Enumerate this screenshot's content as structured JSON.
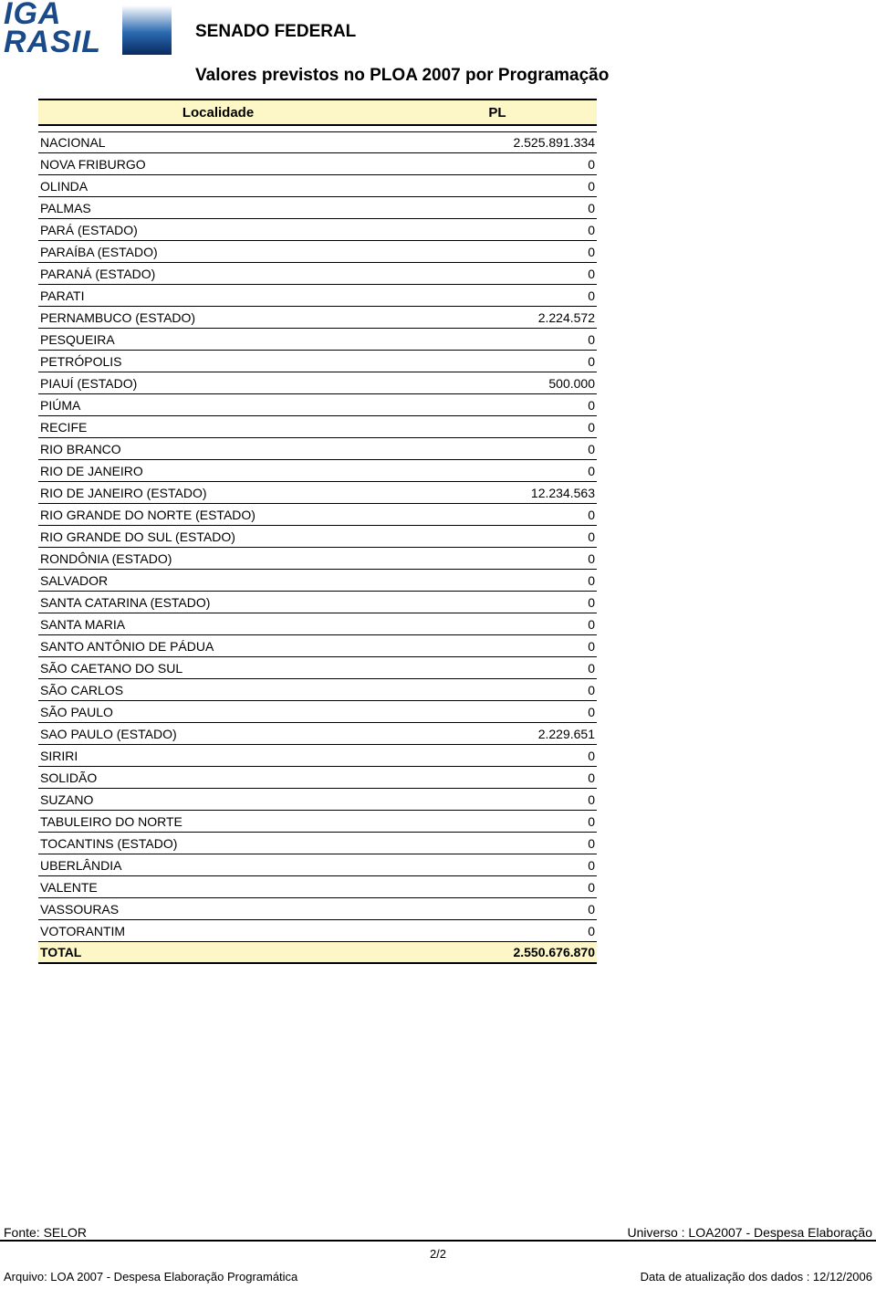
{
  "logo": {
    "top_text": "IGA",
    "bottom_text": "RASIL",
    "text_color": "#1a4a8a",
    "grad_top": "#ffffff",
    "grad_mid": "#2a6ab0",
    "grad_bottom": "#0a2a60"
  },
  "header": {
    "org": "SENADO FEDERAL",
    "title": "Valores previstos no PLOA 2007 por Programação"
  },
  "columns": {
    "loc": "Localidade",
    "pl": "PL"
  },
  "header_bg": "#fdf7c7",
  "total_bg": "#fdf7c7",
  "rows": [
    {
      "loc": "NACIONAL",
      "pl": "2.525.891.334"
    },
    {
      "loc": "NOVA FRIBURGO",
      "pl": "0"
    },
    {
      "loc": "OLINDA",
      "pl": "0"
    },
    {
      "loc": "PALMAS",
      "pl": "0"
    },
    {
      "loc": "PARÁ (ESTADO)",
      "pl": "0"
    },
    {
      "loc": "PARAÍBA (ESTADO)",
      "pl": "0"
    },
    {
      "loc": "PARANÁ (ESTADO)",
      "pl": "0"
    },
    {
      "loc": "PARATI",
      "pl": "0"
    },
    {
      "loc": "PERNAMBUCO (ESTADO)",
      "pl": "2.224.572"
    },
    {
      "loc": "PESQUEIRA",
      "pl": "0"
    },
    {
      "loc": "PETRÓPOLIS",
      "pl": "0"
    },
    {
      "loc": "PIAUÍ (ESTADO)",
      "pl": "500.000"
    },
    {
      "loc": "PIÚMA",
      "pl": "0"
    },
    {
      "loc": "RECIFE",
      "pl": "0"
    },
    {
      "loc": "RIO BRANCO",
      "pl": "0"
    },
    {
      "loc": "RIO DE JANEIRO",
      "pl": "0"
    },
    {
      "loc": "RIO DE JANEIRO (ESTADO)",
      "pl": "12.234.563"
    },
    {
      "loc": "RIO GRANDE DO NORTE (ESTADO)",
      "pl": "0"
    },
    {
      "loc": "RIO GRANDE DO SUL (ESTADO)",
      "pl": "0"
    },
    {
      "loc": "RONDÔNIA (ESTADO)",
      "pl": "0"
    },
    {
      "loc": "SALVADOR",
      "pl": "0"
    },
    {
      "loc": "SANTA CATARINA (ESTADO)",
      "pl": "0"
    },
    {
      "loc": "SANTA MARIA",
      "pl": "0"
    },
    {
      "loc": "SANTO ANTÔNIO DE PÁDUA",
      "pl": "0"
    },
    {
      "loc": "SÃO CAETANO DO SUL",
      "pl": "0"
    },
    {
      "loc": "SÃO CARLOS",
      "pl": "0"
    },
    {
      "loc": "SÃO PAULO",
      "pl": "0"
    },
    {
      "loc": "SAO PAULO (ESTADO)",
      "pl": "2.229.651"
    },
    {
      "loc": "SIRIRI",
      "pl": "0"
    },
    {
      "loc": "SOLIDÃO",
      "pl": "0"
    },
    {
      "loc": "SUZANO",
      "pl": "0"
    },
    {
      "loc": "TABULEIRO DO NORTE",
      "pl": "0"
    },
    {
      "loc": "TOCANTINS (ESTADO)",
      "pl": "0"
    },
    {
      "loc": "UBERLÂNDIA",
      "pl": "0"
    },
    {
      "loc": "VALENTE",
      "pl": "0"
    },
    {
      "loc": "VASSOURAS",
      "pl": "0"
    },
    {
      "loc": "VOTORANTIM",
      "pl": "0"
    }
  ],
  "total": {
    "label": "TOTAL",
    "value": "2.550.676.870"
  },
  "footer": {
    "fonte": "Fonte: SELOR",
    "universo": "Universo : LOA2007 - Despesa Elaboração",
    "page": "2/2",
    "arquivo": "Arquivo: LOA 2007 - Despesa Elaboração Programática",
    "data": "Data de atualização dos dados : 12/12/2006"
  }
}
